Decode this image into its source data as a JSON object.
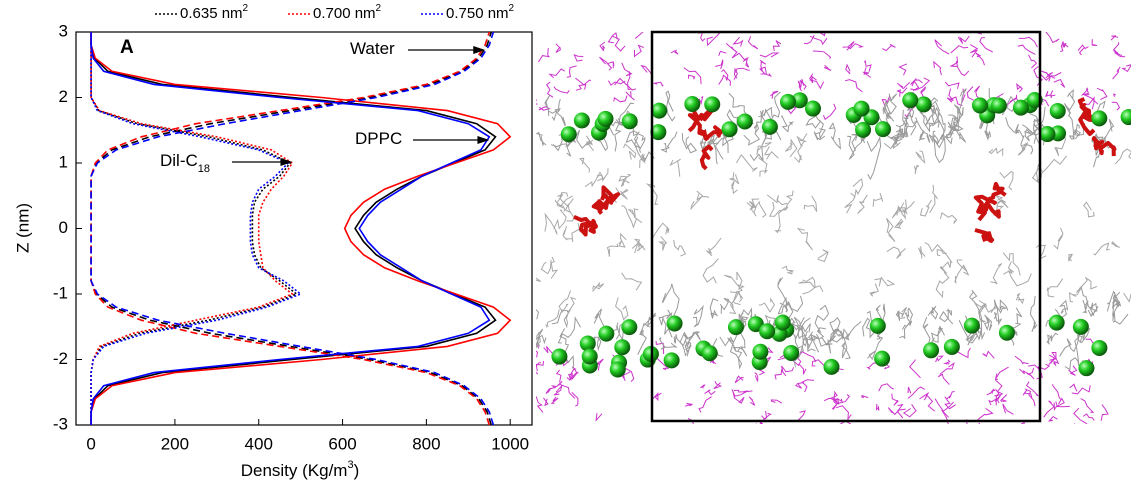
{
  "chart_data": {
    "type": "line",
    "orientation": "horizontal",
    "panel_label": "A",
    "x_label": [
      "Density (Kg/m",
      "3",
      ")"
    ],
    "y_label": "Z (nm)",
    "xlim": [
      -36,
      1052
    ],
    "xticks": [
      0,
      200,
      400,
      600,
      800,
      1000
    ],
    "ylim": [
      -3,
      3
    ],
    "yticks": [
      -3,
      -2,
      -1,
      0,
      1,
      2,
      3
    ],
    "legend": [
      {
        "label": "0.635 nm",
        "sup": "2",
        "color": "#000000"
      },
      {
        "label": "0.700 nm",
        "sup": "2",
        "color": "#ff0000"
      },
      {
        "label": "0.750 nm",
        "sup": "2",
        "color": "#0000ff"
      }
    ],
    "annotations": [
      {
        "text": "Water",
        "target": [
          950,
          2.9
        ]
      },
      {
        "text": "DPPC",
        "target": [
          960,
          1.3
        ]
      },
      {
        "text": "Dil-C",
        "sub": "18",
        "target": [
          490,
          0.95
        ]
      }
    ],
    "x": [
      -3,
      -2.8,
      -2.6,
      -2.4,
      -2.2,
      -2,
      -1.8,
      -1.6,
      -1.4,
      -1.2,
      -1,
      -0.8,
      -0.6,
      -0.4,
      -0.2,
      0,
      0.2,
      0.4,
      0.6,
      0.8,
      1,
      1.2,
      1.4,
      1.6,
      1.8,
      2,
      2.2,
      2.4,
      2.6,
      2.8,
      3
    ],
    "series": [
      {
        "legend": 0,
        "style": "dashed",
        "values": [
          955,
          945,
          925,
          885,
          810,
          665,
          475,
          285,
          140,
          50,
          12,
          0,
          0,
          0,
          0,
          0,
          0,
          0,
          0,
          0,
          12,
          50,
          140,
          285,
          475,
          665,
          810,
          885,
          925,
          945,
          955
        ]
      },
      {
        "legend": 0,
        "style": "solid",
        "values": [
          0,
          0,
          8,
          40,
          170,
          480,
          800,
          920,
          965,
          940,
          865,
          790,
          730,
          680,
          650,
          630,
          650,
          680,
          730,
          790,
          865,
          940,
          965,
          920,
          800,
          480,
          170,
          40,
          8,
          0,
          0
        ]
      },
      {
        "legend": 0,
        "style": "dotted",
        "values": [
          0,
          0,
          0,
          0,
          0,
          5,
          25,
          115,
          280,
          410,
          490,
          450,
          405,
          390,
          385,
          385,
          385,
          390,
          410,
          450,
          475,
          410,
          280,
          110,
          18,
          0,
          0,
          0,
          0,
          0,
          0
        ]
      },
      {
        "legend": 1,
        "style": "dashed",
        "values": [
          950,
          940,
          920,
          880,
          800,
          650,
          450,
          250,
          120,
          40,
          10,
          0,
          0,
          0,
          0,
          0,
          0,
          0,
          0,
          0,
          10,
          40,
          120,
          250,
          450,
          650,
          800,
          880,
          920,
          940,
          950
        ]
      },
      {
        "legend": 1,
        "style": "solid",
        "values": [
          0,
          0,
          10,
          50,
          200,
          550,
          850,
          970,
          1000,
          960,
          870,
          780,
          700,
          650,
          620,
          605,
          620,
          650,
          700,
          780,
          870,
          960,
          1000,
          970,
          850,
          550,
          200,
          50,
          10,
          0,
          0
        ]
      },
      {
        "legend": 1,
        "style": "dotted",
        "values": [
          0,
          0,
          0,
          0,
          0,
          5,
          20,
          100,
          250,
          400,
          480,
          440,
          410,
          405,
          400,
          400,
          400,
          410,
          430,
          460,
          480,
          430,
          300,
          120,
          20,
          0,
          0,
          0,
          0,
          0,
          0
        ]
      },
      {
        "legend": 2,
        "style": "dashed",
        "values": [
          960,
          950,
          930,
          890,
          820,
          680,
          500,
          320,
          160,
          60,
          15,
          0,
          0,
          0,
          0,
          0,
          0,
          0,
          0,
          0,
          15,
          60,
          160,
          320,
          500,
          680,
          820,
          890,
          930,
          950,
          960
        ]
      },
      {
        "legend": 2,
        "style": "solid",
        "values": [
          0,
          0,
          5,
          30,
          150,
          450,
          780,
          900,
          950,
          930,
          860,
          790,
          740,
          690,
          660,
          640,
          660,
          690,
          740,
          790,
          860,
          930,
          950,
          900,
          780,
          450,
          150,
          30,
          5,
          0,
          0
        ]
      },
      {
        "legend": 2,
        "style": "dotted",
        "values": [
          0,
          0,
          0,
          0,
          0,
          5,
          30,
          130,
          300,
          420,
          500,
          460,
          400,
          385,
          380,
          380,
          380,
          385,
          400,
          440,
          470,
          400,
          260,
          100,
          15,
          0,
          0,
          0,
          0,
          0,
          0
        ]
      }
    ]
  }
}
